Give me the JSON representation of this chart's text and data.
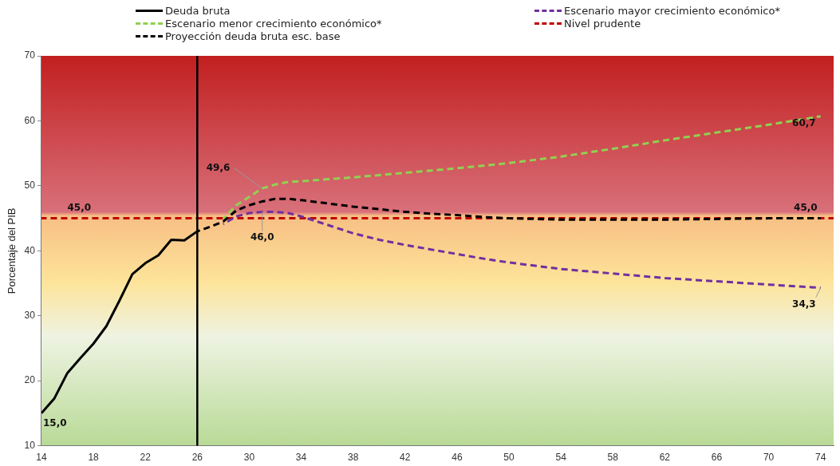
{
  "chart_data": {
    "type": "line",
    "ylabel": "Porcentaje del PIB",
    "xlim": [
      14,
      75
    ],
    "xticks": [
      14,
      18,
      22,
      26,
      30,
      34,
      38,
      42,
      46,
      50,
      54,
      58,
      62,
      66,
      70,
      74
    ],
    "ylim": [
      10,
      70
    ],
    "yticks": [
      10,
      20,
      30,
      40,
      50,
      60,
      70
    ],
    "grid": false,
    "legend": "top",
    "marker": "none",
    "series": [
      {
        "name": "Deuda bruta",
        "color": "#000000",
        "line_style": "solid",
        "x": [
          14,
          15,
          16,
          17,
          18,
          19,
          20,
          21,
          22,
          23,
          24,
          25,
          26
        ],
        "values": [
          15.0,
          17.3,
          21.2,
          23.5,
          25.7,
          28.4,
          32.3,
          36.4,
          38.1,
          39.3,
          41.7,
          41.6,
          43.0
        ]
      },
      {
        "name": "Escenario mayor crecimiento económico*",
        "color": "#7030a0",
        "line_style": "dashed",
        "x": [
          28,
          29,
          30,
          31,
          32,
          33,
          34,
          36,
          38,
          40,
          42,
          44,
          46,
          48,
          50,
          54,
          58,
          62,
          66,
          70,
          74
        ],
        "values": [
          44.1,
          45.3,
          45.8,
          46.0,
          46.0,
          45.8,
          45.3,
          44.0,
          42.7,
          41.7,
          40.9,
          40.2,
          39.5,
          38.8,
          38.2,
          37.2,
          36.5,
          35.8,
          35.3,
          34.8,
          34.3
        ]
      },
      {
        "name": "Escenario menor crecimiento económico*",
        "color": "#92d050",
        "line_style": "dashed",
        "x": [
          28,
          29,
          30,
          31,
          32,
          33,
          34,
          38,
          42,
          46,
          50,
          54,
          58,
          62,
          66,
          70,
          74
        ],
        "values": [
          44.9,
          47.0,
          48.3,
          49.6,
          50.2,
          50.6,
          50.7,
          51.3,
          52.0,
          52.7,
          53.5,
          54.5,
          55.7,
          57.0,
          58.2,
          59.4,
          60.7
        ]
      },
      {
        "name": "Nivel prudente",
        "color": "#c00000",
        "line_style": "dashed",
        "x": [
          14,
          75
        ],
        "values": [
          45.0,
          45.0
        ]
      },
      {
        "name": "Proyección deuda bruta esc. base",
        "color": "#000000",
        "line_style": "dashed",
        "x": [
          26,
          27,
          28,
          29,
          30,
          31,
          32,
          33,
          34,
          36,
          38,
          40,
          42,
          44,
          46,
          48,
          50,
          52,
          54,
          58,
          62,
          66,
          70,
          74
        ],
        "values": [
          43.0,
          43.7,
          44.5,
          46.2,
          47.0,
          47.6,
          48.0,
          48.0,
          47.8,
          47.3,
          46.8,
          46.4,
          46.0,
          45.7,
          45.5,
          45.2,
          45.0,
          44.9,
          44.8,
          44.8,
          44.8,
          44.9,
          45.0,
          45.0
        ]
      }
    ],
    "ref_lines": [
      {
        "axis": "x",
        "value": 26,
        "color": "#000000",
        "line_style": "solid"
      }
    ],
    "annotations": [
      {
        "text": "15,0",
        "x": 14,
        "y": 15.0
      },
      {
        "text": "45,0",
        "x": 16,
        "y": 45.0
      },
      {
        "text": "49,6",
        "x": 31,
        "y": 49.6
      },
      {
        "text": "46,0",
        "x": 31,
        "y": 46.0
      },
      {
        "text": "60,7",
        "x": 74,
        "y": 60.7
      },
      {
        "text": "45,0",
        "x": 74,
        "y": 45.0
      },
      {
        "text": "34,3",
        "x": 74,
        "y": 34.3
      }
    ]
  }
}
